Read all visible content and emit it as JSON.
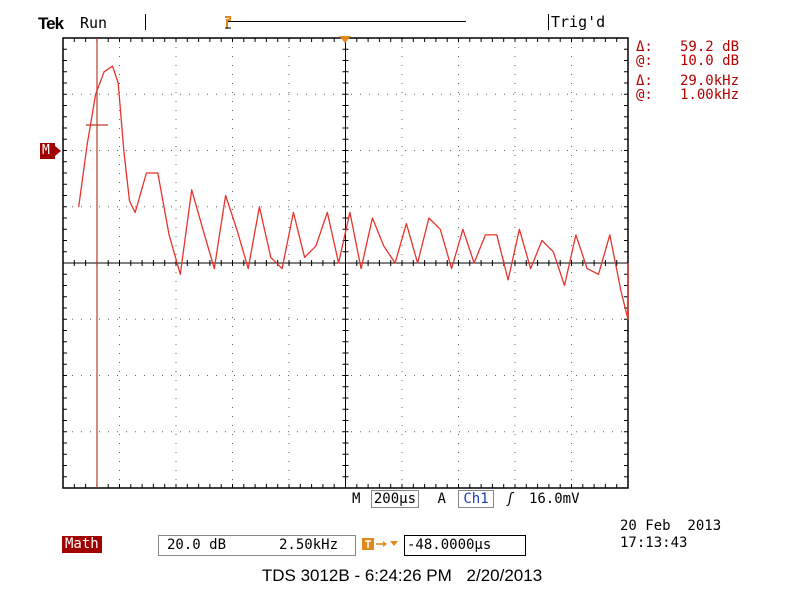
{
  "header": {
    "brand": "Tek",
    "run_status": "Run",
    "trigger_status": "Trig'd"
  },
  "cursor_readout": {
    "delta_label_1": "Δ:",
    "delta_value_1": "59.2 dB",
    "at_label_1": "@:",
    "at_value_1": "10.0 dB",
    "delta_label_2": "Δ:",
    "delta_value_2": "29.0kHz",
    "at_label_2": "@:",
    "at_value_2": "1.00kHz"
  },
  "channel_marker": "M",
  "status_bar": {
    "timebase_label": "M",
    "timebase_value": "200μs",
    "trigger_source_label": "A",
    "trigger_source": "Ch1",
    "trigger_slope_symbol": "ʃ",
    "trigger_level": "16.0mV"
  },
  "math": {
    "label": "Math",
    "scale": "20.0 dB",
    "span": "2.50kHz",
    "offset": "-48.0000μs"
  },
  "timestamp": {
    "date": "20 Feb  2013",
    "time": "17:13:43"
  },
  "footer": {
    "model": "TDS 3012B - 6:24:26 PM",
    "date": "2/20/2013"
  },
  "colors": {
    "trace": "#e8332c",
    "readout": "#b40000",
    "trigger_marker": "#e08a1e"
  },
  "trace_data": {
    "unit_x": "divisions",
    "unit_y": "divisions from center",
    "points_x": [
      0.1,
      0.25,
      0.4,
      0.55,
      0.7,
      0.8,
      0.9,
      1.0,
      1.1,
      1.3,
      1.5,
      1.7,
      1.9,
      2.1,
      2.3,
      2.5,
      2.7,
      2.9,
      3.1,
      3.3,
      3.5,
      3.7,
      3.9,
      4.1,
      4.3,
      4.5,
      4.7,
      4.9,
      5.1,
      5.3,
      5.5,
      5.7,
      5.9,
      6.1,
      6.3,
      6.5,
      6.7,
      6.9,
      7.1,
      7.3,
      7.5,
      7.7,
      7.9,
      8.1,
      8.3,
      8.5,
      8.7,
      8.9,
      9.1,
      9.3,
      9.5,
      9.7,
      9.9,
      10.0
    ],
    "points_y": [
      1.0,
      2.1,
      3.0,
      3.4,
      3.5,
      3.2,
      2.0,
      1.1,
      0.9,
      1.6,
      1.6,
      0.5,
      -0.2,
      1.3,
      0.6,
      -0.1,
      1.2,
      0.6,
      -0.1,
      1.0,
      0.1,
      -0.1,
      0.9,
      0.1,
      0.3,
      0.9,
      0.0,
      0.9,
      -0.1,
      0.8,
      0.3,
      0.0,
      0.7,
      0.0,
      0.8,
      0.6,
      -0.1,
      0.6,
      0.0,
      0.5,
      0.5,
      -0.3,
      0.6,
      -0.1,
      0.4,
      0.2,
      -0.4,
      0.5,
      -0.1,
      -0.2,
      0.5,
      -0.5,
      -1.0,
      0.0
    ]
  }
}
